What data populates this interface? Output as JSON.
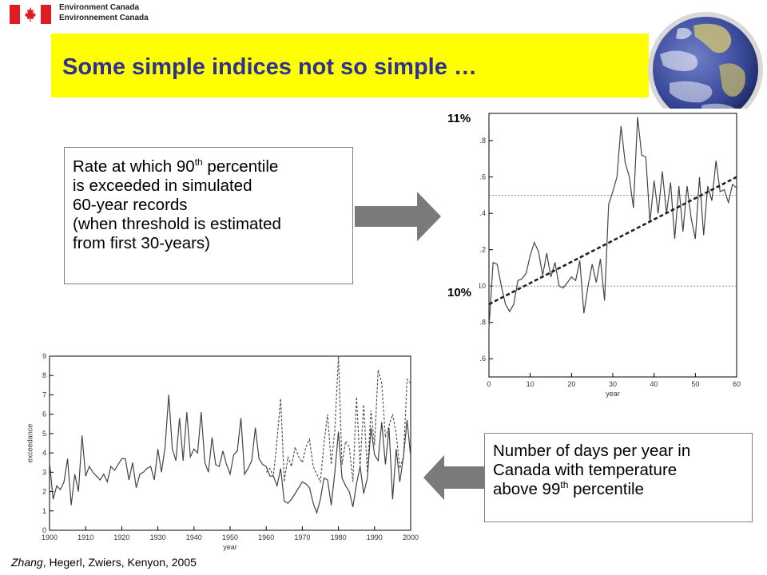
{
  "header": {
    "wordmark_en": "Environment Canada",
    "wordmark_fr": "Environnement Canada",
    "flag_color": "#e11b22"
  },
  "title": "Some simple indices not so simple …",
  "colors": {
    "banner": "#ffff00",
    "title": "#2e3192",
    "arrow": "#7a7a7a"
  },
  "callout_top": {
    "line1_pre": "Rate at which 90",
    "line1_sup": "th",
    "line1_post": " percentile",
    "line2": "is exceeded in simulated",
    "line3": "60-year records",
    "line4": "(when threshold is estimated",
    "line5": "from first 30-years)"
  },
  "callout_bottom": {
    "line1": "Number of days per year in",
    "line2": "Canada with temperature",
    "line3_pre": "above 99",
    "line3_sup": "th",
    "line3_post": " percentile"
  },
  "labels": {
    "pct_top": "11%",
    "pct_bottom": "10%"
  },
  "credit": {
    "authors_italic": "Zhang",
    "authors_rest": ", Hegerl, Zwiers, Kenyon, 2005"
  },
  "chart_data": [
    {
      "type": "line",
      "xlabel": "year",
      "ylabel": "",
      "xlim": [
        0,
        60
      ],
      "ylim": [
        9.5,
        10.95
      ],
      "xticks": [
        0,
        10,
        20,
        30,
        40,
        50,
        60
      ],
      "yticks": [
        9.6,
        9.8,
        10.0,
        10.2,
        10.4,
        10.6,
        10.8
      ],
      "ytick_labels": [
        "9.6",
        "9.8",
        "10",
        "10.2",
        "10.4",
        "10.6",
        "10.8"
      ],
      "reference_lines": [
        10.0,
        10.5
      ],
      "trend": {
        "x": [
          0,
          60
        ],
        "y": [
          9.9,
          10.6
        ]
      },
      "series": [
        {
          "x": [
            0,
            1,
            2,
            3,
            4,
            5,
            6,
            7,
            8,
            9,
            10,
            11,
            12,
            13,
            14,
            15,
            16,
            17,
            18,
            19,
            20,
            21,
            22,
            23,
            24,
            25,
            26,
            27,
            28,
            29,
            30,
            31,
            32,
            33,
            34,
            35,
            36,
            37,
            38,
            39,
            40,
            41,
            42,
            43,
            44,
            45,
            46,
            47,
            48,
            49,
            50,
            51,
            52,
            53,
            54,
            55,
            56,
            57,
            58,
            59,
            60
          ],
          "y": [
            9.77,
            10.13,
            10.12,
            10.0,
            9.9,
            9.86,
            9.9,
            10.03,
            10.04,
            10.07,
            10.17,
            10.24,
            10.19,
            10.06,
            10.18,
            10.05,
            10.13,
            10.0,
            9.99,
            10.02,
            10.05,
            10.03,
            10.14,
            9.85,
            10.0,
            10.12,
            10.02,
            10.15,
            9.92,
            10.45,
            10.52,
            10.6,
            10.88,
            10.68,
            10.6,
            10.43,
            10.93,
            10.72,
            10.71,
            10.35,
            10.58,
            10.4,
            10.63,
            10.4,
            10.57,
            10.26,
            10.55,
            10.3,
            10.55,
            10.37,
            10.26,
            10.6,
            10.28,
            10.55,
            10.47,
            10.69,
            10.52,
            10.53,
            10.46,
            10.56,
            10.54
          ]
        }
      ]
    },
    {
      "type": "line",
      "xlabel": "year",
      "ylabel": "exceedance",
      "xlim": [
        1900,
        2000
      ],
      "ylim": [
        0,
        9
      ],
      "xticks": [
        1900,
        1910,
        1920,
        1930,
        1940,
        1950,
        1960,
        1970,
        1980,
        1990,
        2000
      ],
      "yticks": [
        0,
        1,
        2,
        3,
        4,
        5,
        6,
        7,
        8,
        9
      ],
      "series": [
        {
          "style": "solid",
          "x": [
            1900,
            1901,
            1902,
            1903,
            1904,
            1905,
            1906,
            1907,
            1908,
            1909,
            1910,
            1911,
            1912,
            1913,
            1914,
            1915,
            1916,
            1917,
            1918,
            1919,
            1920,
            1921,
            1922,
            1923,
            1924,
            1925,
            1926,
            1927,
            1928,
            1929,
            1930,
            1931,
            1932,
            1933,
            1934,
            1935,
            1936,
            1937,
            1938,
            1939,
            1940,
            1941,
            1942,
            1943,
            1944,
            1945,
            1946,
            1947,
            1948,
            1949,
            1950,
            1951,
            1952,
            1953,
            1954,
            1955,
            1956,
            1957,
            1958,
            1959,
            1960,
            1961,
            1962,
            1963,
            1964,
            1965,
            1966,
            1967,
            1968,
            1969,
            1970,
            1971,
            1972,
            1973,
            1974,
            1975,
            1976,
            1977,
            1978,
            1979,
            1980,
            1981,
            1982,
            1983,
            1984,
            1985,
            1986,
            1987,
            1988,
            1989,
            1990,
            1991,
            1992,
            1993,
            1994,
            1995,
            1996,
            1997,
            1998,
            1999,
            2000
          ],
          "y": [
            3.5,
            1.6,
            2.3,
            2.1,
            2.5,
            3.7,
            1.3,
            2.9,
            2.0,
            4.9,
            2.8,
            3.3,
            3.0,
            2.8,
            2.6,
            2.9,
            2.5,
            3.3,
            3.1,
            3.4,
            3.7,
            3.7,
            2.6,
            3.5,
            2.2,
            2.9,
            3.0,
            3.2,
            3.3,
            2.6,
            4.2,
            3.0,
            4.3,
            7.0,
            4.2,
            3.6,
            5.8,
            3.6,
            6.1,
            3.8,
            4.2,
            4.0,
            6.1,
            3.5,
            3.0,
            4.8,
            3.4,
            3.3,
            4.1,
            3.4,
            2.9,
            3.9,
            4.1,
            5.8,
            2.9,
            3.2,
            3.6,
            5.3,
            3.7,
            3.4,
            3.3,
            2.8,
            2.8,
            2.3,
            3.2,
            1.5,
            1.4,
            1.6,
            1.9,
            2.2,
            2.5,
            2.4,
            2.2,
            1.4,
            0.9,
            1.6,
            2.7,
            2.6,
            1.3,
            3.0,
            5.1,
            2.7,
            2.3,
            2.0,
            1.2,
            2.4,
            3.3,
            1.9,
            2.7,
            5.3,
            3.9,
            3.6,
            5.6,
            3.4,
            5.3,
            1.6,
            4.2,
            2.5,
            3.8,
            5.7,
            3.8
          ]
        },
        {
          "style": "dashed",
          "x": [
            1960,
            1961,
            1962,
            1963,
            1964,
            1965,
            1966,
            1967,
            1968,
            1969,
            1970,
            1971,
            1972,
            1973,
            1974,
            1975,
            1976,
            1977,
            1978,
            1979,
            1980,
            1981,
            1982,
            1983,
            1984,
            1985,
            1986,
            1987,
            1988,
            1989,
            1990,
            1991,
            1992,
            1993,
            1994,
            1995,
            1996,
            1997,
            1998,
            1999,
            2000
          ],
          "y": [
            3.0,
            3.2,
            2.8,
            4.7,
            6.8,
            2.5,
            3.8,
            3.3,
            4.3,
            3.8,
            3.5,
            4.3,
            4.7,
            3.3,
            2.9,
            2.5,
            4.5,
            6.0,
            3.4,
            5.2,
            9.0,
            3.4,
            4.6,
            4.3,
            2.5,
            6.9,
            3.3,
            6.5,
            3.0,
            6.2,
            4.4,
            8.3,
            7.6,
            4.8,
            5.4,
            6.0,
            5.0,
            3.2,
            3.8,
            7.8,
            7.6
          ]
        }
      ]
    }
  ]
}
